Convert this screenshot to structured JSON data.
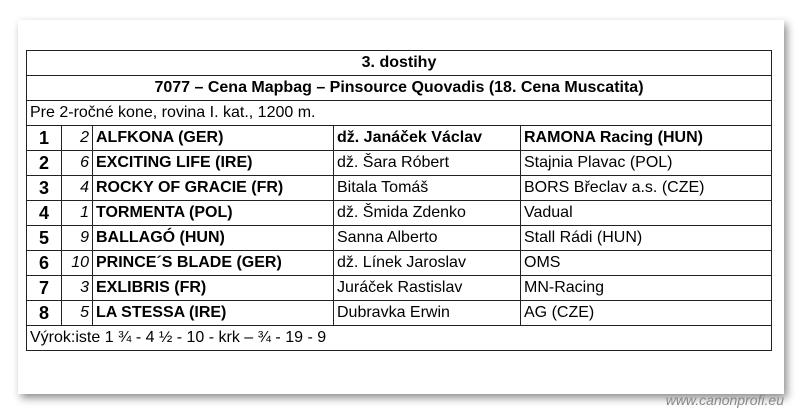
{
  "header": {
    "title": "3. dostihy",
    "race": "7077 – Cena Mapbag – Pinsource Quovadis (18. Cena Muscatita)",
    "conditions": "Pre 2-ročné kone, rovina I. kat., 1200 m."
  },
  "table": {
    "rows": [
      [
        1,
        2,
        "ALFKONA (GER)",
        "dž. Janáček Václav",
        "RAMONA Racing (HUN)"
      ],
      [
        2,
        6,
        "EXCITING LIFE (IRE)",
        "dž. Šara Róbert",
        "Stajnia Plavac (POL)"
      ],
      [
        3,
        4,
        "ROCKY OF GRACIE (FR)",
        "Bitala Tomáš",
        "BORS Břeclav a.s. (CZE)"
      ],
      [
        4,
        1,
        "TORMENTA (POL)",
        "dž. Šmida Zdenko",
        "Vadual"
      ],
      [
        5,
        9,
        "BALLAGÓ (HUN)",
        "Sanna Alberto",
        "Stall Rádi (HUN)"
      ],
      [
        6,
        10,
        "PRINCE´S BLADE (GER)",
        "dž. Línek Jaroslav",
        "OMS"
      ],
      [
        7,
        3,
        "EXLIBRIS (FR)",
        "Juráček Rastislav",
        "MN-Racing"
      ],
      [
        8,
        5,
        "LA STESSA (IRE)",
        "Dubravka Erwin",
        "AG (CZE)"
      ]
    ]
  },
  "footer": "Výrok:iste 1 ¾ - 4 ½ - 10 - krk – ¾ - 19 - 9",
  "watermark": "www.canonprofi.eu"
}
